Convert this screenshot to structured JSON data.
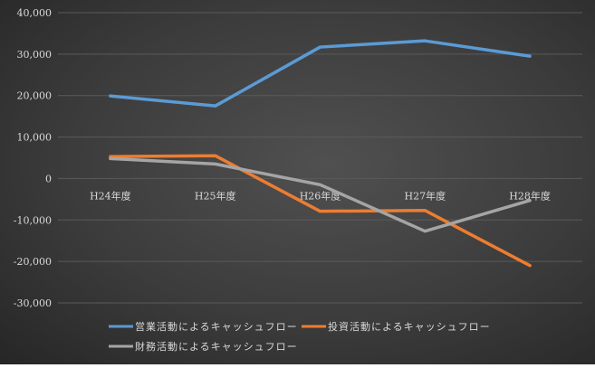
{
  "chart_data": {
    "type": "line",
    "title": "",
    "xlabel": "",
    "ylabel": "",
    "categories": [
      "H24年度",
      "H25年度",
      "H26年度",
      "H27年度",
      "H28年度"
    ],
    "ylim": [
      -30000,
      40000
    ],
    "yticks": [
      40000,
      30000,
      20000,
      10000,
      0,
      -10000,
      -20000,
      -30000
    ],
    "ytick_labels": [
      "40,000",
      "30,000",
      "20,000",
      "10,000",
      "0",
      "-10,000",
      "-20,000",
      "-30,000"
    ],
    "grid": true,
    "legend_position": "bottom",
    "series": [
      {
        "name": "営業活動によるキャッシュフロー",
        "color": "#5b9bd5",
        "values": [
          19900,
          17500,
          31700,
          33200,
          29500
        ]
      },
      {
        "name": "投資活動によるキャッシュフロー",
        "color": "#ed7d31",
        "values": [
          5300,
          5500,
          -7900,
          -7700,
          -21000
        ]
      },
      {
        "name": "財務活動によるキャッシュフロー",
        "color": "#a5a5a5",
        "values": [
          4800,
          3500,
          -1500,
          -12700,
          -5300
        ]
      }
    ]
  }
}
